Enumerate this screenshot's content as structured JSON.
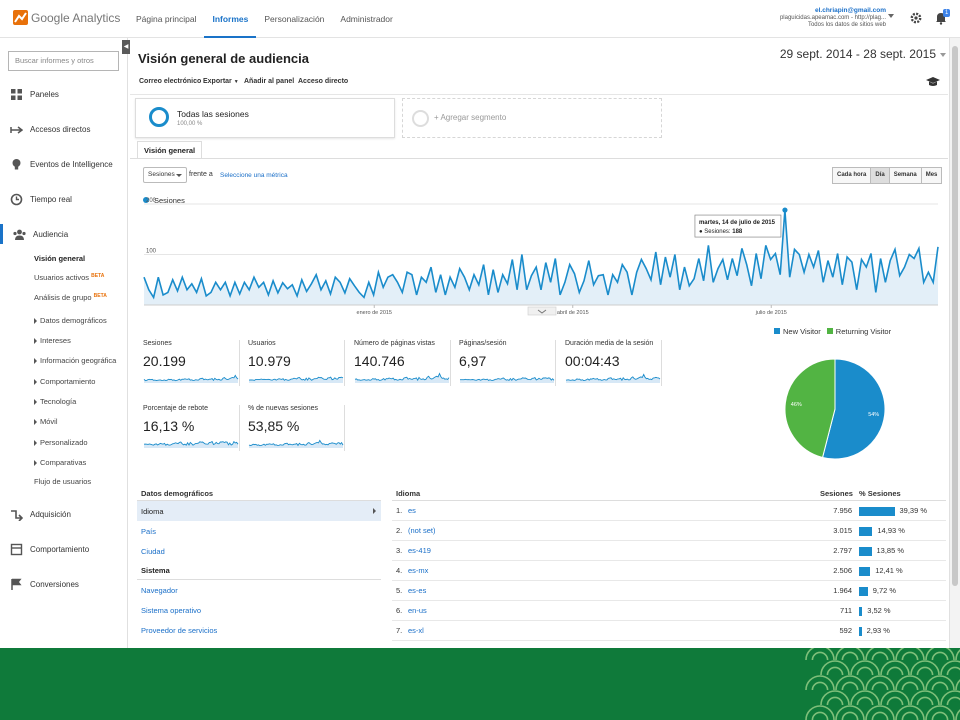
{
  "brand": {
    "name": "Google Analytics",
    "accent": "#1a73c8",
    "series_color": "#1a8ccb",
    "pie_colors": [
      "#1a8ccb",
      "#52b443"
    ],
    "band_color": "#0f7a3a"
  },
  "topnav": {
    "tabs": [
      "Página principal",
      "Informes",
      "Personalización",
      "Administrador"
    ],
    "active": "Informes"
  },
  "account": {
    "email": "el.chriapin@gmail.com",
    "property": "plaguicidas.apeamac.com - http://plag...",
    "view": "Todos los datos de sitios web",
    "notifications": "1"
  },
  "sidebar": {
    "search_placeholder": "Buscar informes y otros",
    "items": [
      {
        "label": "Paneles",
        "icon": "grid-icon"
      },
      {
        "label": "Accesos directos",
        "icon": "shortcut-arrow-icon"
      },
      {
        "label": "Eventos de Intelligence",
        "icon": "lightbulb-icon"
      },
      {
        "label": "Tiempo real",
        "icon": "clock-icon"
      },
      {
        "label": "Audiencia",
        "icon": "people-icon"
      }
    ],
    "audience_sub": [
      {
        "label": "Visión general",
        "bold": true
      },
      {
        "label": "Usuarios activos",
        "badge": "BETA"
      },
      {
        "label": "Análisis de grupo",
        "badge": "BETA"
      },
      {
        "label": "Datos demográficos",
        "expand": true
      },
      {
        "label": "Intereses",
        "expand": true
      },
      {
        "label": "Información geográfica",
        "expand": true
      },
      {
        "label": "Comportamiento",
        "expand": true
      },
      {
        "label": "Tecnología",
        "expand": true
      },
      {
        "label": "Móvil",
        "expand": true
      },
      {
        "label": "Personalizado",
        "expand": true
      },
      {
        "label": "Comparativas",
        "expand": true
      },
      {
        "label": "Flujo de usuarios"
      }
    ],
    "bottom": [
      {
        "label": "Adquisición",
        "icon": "acquisition-icon"
      },
      {
        "label": "Comportamiento",
        "icon": "behavior-icon"
      },
      {
        "label": "Conversiones",
        "icon": "flag-icon"
      }
    ]
  },
  "main": {
    "title": "Visión general de audiencia",
    "date_range": "29 sept. 2014 - 28 sept. 2015",
    "actions": [
      "Correo electrónico",
      "Exportar",
      "Añadir al panel",
      "Acceso directo"
    ],
    "segment": {
      "name": "Todas las sesiones",
      "pct": "100,00 %"
    },
    "add_segment": "+ Agregar segmento",
    "tab": "Visión general",
    "metric_select": "Sesiones",
    "vs_label": "frente a",
    "select_metric_link": "Seleccione una métrica",
    "periods": [
      "Cada hora",
      "Día",
      "Semana",
      "Mes"
    ],
    "active_period": "Día"
  },
  "chart_data": {
    "type": "line",
    "series": [
      {
        "name": "Sesiones"
      }
    ],
    "y_ticks": [
      "200",
      "100"
    ],
    "x_ticks": [
      "enero de 2015",
      "abril de 2015",
      "julio de 2015"
    ],
    "ylim": [
      0,
      200
    ],
    "tooltip": {
      "date": "martes, 14 de julio de 2015",
      "label": "Sesiones:",
      "value": "188"
    },
    "values": [
      55,
      30,
      15,
      55,
      20,
      25,
      50,
      28,
      55,
      30,
      42,
      25,
      52,
      18,
      25,
      45,
      30,
      45,
      18,
      45,
      22,
      45,
      30,
      55,
      35,
      45,
      20,
      48,
      24,
      44,
      32,
      40,
      18,
      50,
      27,
      42,
      60,
      30,
      48,
      22,
      55,
      45,
      24,
      52,
      38,
      25,
      15,
      45,
      20,
      65,
      35,
      55,
      60,
      45,
      25,
      65,
      60,
      20,
      55,
      45,
      75,
      25,
      60,
      20,
      55,
      35,
      72,
      55,
      30,
      60,
      40,
      80,
      20,
      70,
      25,
      60,
      42,
      90,
      30,
      100,
      30,
      58,
      75,
      30,
      84,
      45,
      92,
      20,
      45,
      80,
      62,
      25,
      48,
      88,
      40,
      58,
      60,
      20,
      60,
      45,
      80,
      65,
      20,
      65,
      90,
      72,
      50,
      105,
      40,
      95,
      55,
      100,
      30,
      75,
      38,
      52,
      92,
      48,
      118,
      45,
      72,
      90,
      50,
      92,
      58,
      112,
      80,
      38,
      102,
      52,
      118,
      90,
      102,
      60,
      188,
      55,
      110,
      100,
      65,
      100,
      75,
      108,
      45,
      88,
      55,
      102,
      40,
      95,
      85,
      30,
      90,
      75,
      102,
      25,
      92,
      45,
      88,
      110,
      58,
      75,
      100,
      92,
      112,
      45,
      65,
      45,
      115
    ]
  },
  "scorecards": [
    {
      "label": "Sesiones",
      "value": "20.199"
    },
    {
      "label": "Usuarios",
      "value": "10.979"
    },
    {
      "label": "Número de páginas vistas",
      "value": "140.746"
    },
    {
      "label": "Páginas/sesión",
      "value": "6,97"
    },
    {
      "label": "Duración media de la sesión",
      "value": "00:04:43"
    },
    {
      "label": "Porcentaje de rebote",
      "value": "16,13 %"
    },
    {
      "label": "% de nuevas sesiones",
      "value": "53,85 %"
    }
  ],
  "pie": {
    "legend": [
      "New Visitor",
      "Returning Visitor"
    ],
    "values": [
      54,
      46
    ],
    "labels": [
      "54%",
      "46%"
    ]
  },
  "left_table": {
    "header": "Datos demográficos",
    "rows": [
      "Idioma",
      "País",
      "Ciudad"
    ],
    "section2": "Sistema",
    "rows2": [
      "Navegador",
      "Sistema operativo",
      "Proveedor de servicios"
    ]
  },
  "right_table": {
    "headers": [
      "Idioma",
      "Sesiones",
      "% Sesiones"
    ],
    "rows": [
      {
        "n": "1.",
        "name": "es",
        "sessions": "7.956",
        "pct": "39,39 %",
        "frac": 0.3939
      },
      {
        "n": "2.",
        "name": "(not set)",
        "sessions": "3.015",
        "pct": "14,93 %",
        "frac": 0.1493
      },
      {
        "n": "3.",
        "name": "es-419",
        "sessions": "2.797",
        "pct": "13,85 %",
        "frac": 0.1385
      },
      {
        "n": "4.",
        "name": "es-mx",
        "sessions": "2.506",
        "pct": "12,41 %",
        "frac": 0.1241
      },
      {
        "n": "5.",
        "name": "es-es",
        "sessions": "1.964",
        "pct": "9,72 %",
        "frac": 0.0972
      },
      {
        "n": "6.",
        "name": "en-us",
        "sessions": "711",
        "pct": "3,52 %",
        "frac": 0.0352
      },
      {
        "n": "7.",
        "name": "es-xl",
        "sessions": "592",
        "pct": "2,93 %",
        "frac": 0.0293
      }
    ]
  }
}
